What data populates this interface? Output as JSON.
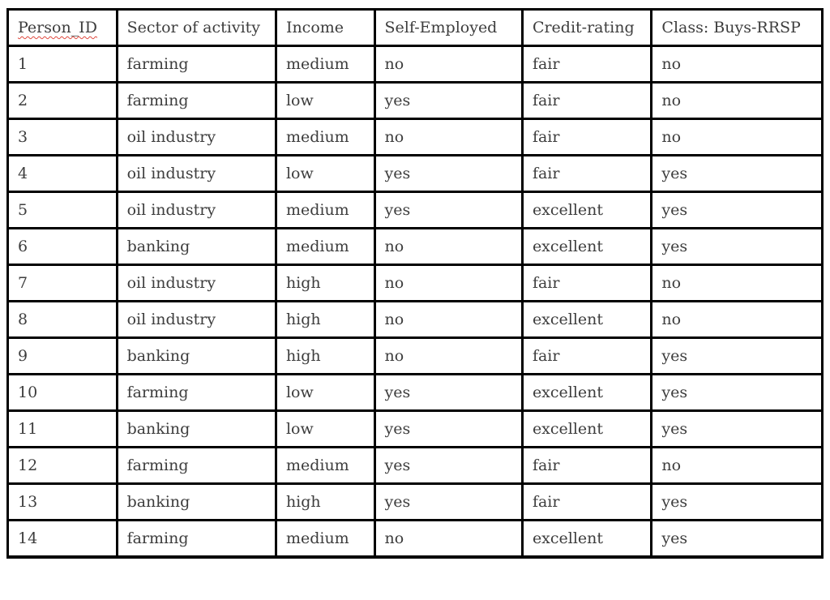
{
  "table": {
    "columns": [
      {
        "id": "person-id",
        "label": "Person_ID",
        "spellcheck_underline": true
      },
      {
        "id": "sector",
        "label": "Sector of activity"
      },
      {
        "id": "income",
        "label": "Income"
      },
      {
        "id": "self-employed",
        "label": "Self-Employed"
      },
      {
        "id": "credit-rating",
        "label": "Credit-rating"
      },
      {
        "id": "class-buys-rrsp",
        "label": "Class: Buys-RRSP"
      }
    ],
    "rows": [
      [
        "1",
        "farming",
        "medium",
        "no",
        "fair",
        "no"
      ],
      [
        "2",
        "farming",
        "low",
        "yes",
        "fair",
        "no"
      ],
      [
        "3",
        "oil industry",
        "medium",
        "no",
        "fair",
        "no"
      ],
      [
        "4",
        "oil industry",
        "low",
        "yes",
        "fair",
        "yes"
      ],
      [
        "5",
        "oil industry",
        "medium",
        "yes",
        "excellent",
        "yes"
      ],
      [
        "6",
        "banking",
        "medium",
        "no",
        "excellent",
        "yes"
      ],
      [
        "7",
        "oil industry",
        "high",
        "no",
        "fair",
        "no"
      ],
      [
        "8",
        "oil industry",
        "high",
        "no",
        "excellent",
        "no"
      ],
      [
        "9",
        "banking",
        "high",
        "no",
        "fair",
        "yes"
      ],
      [
        "10",
        "farming",
        "low",
        "yes",
        "excellent",
        "yes"
      ],
      [
        "11",
        "banking",
        "low",
        "yes",
        "excellent",
        "yes"
      ],
      [
        "12",
        "farming",
        "medium",
        "yes",
        "fair",
        "no"
      ],
      [
        "13",
        "banking",
        "high",
        "yes",
        "fair",
        "yes"
      ],
      [
        "14",
        "farming",
        "medium",
        "no",
        "excellent",
        "yes"
      ]
    ]
  },
  "colors": {
    "border": "#000000",
    "text": "#3d3d3d",
    "spellcheck_underline": "#e04a3f",
    "background": "#ffffff"
  }
}
